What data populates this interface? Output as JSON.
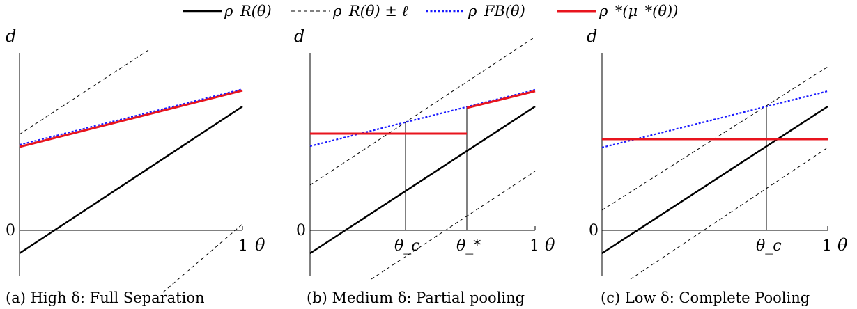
{
  "legend": [
    {
      "key": "rho_r",
      "label": "ρ_R(θ)",
      "style": "solid",
      "color": "#000000"
    },
    {
      "key": "rho_r_band",
      "label": "ρ_R(θ) ± ℓ",
      "style": "dashed",
      "color": "#000000"
    },
    {
      "key": "rho_fb",
      "label": "ρ_FB(θ)",
      "style": "dotted",
      "color": "#1a1aff"
    },
    {
      "key": "rho_star",
      "label": "ρ_*(μ_*(θ))",
      "style": "solid",
      "color": "#e8141e"
    }
  ],
  "axis_labels": {
    "y": "d",
    "x": "θ",
    "origin": "0",
    "x_max": "1"
  },
  "panels": [
    {
      "caption": "(a) High δ: Full Separation",
      "ticks": []
    },
    {
      "caption": "(b) Medium δ: Partial pooling",
      "ticks": [
        "θ_c",
        "θ_*"
      ]
    },
    {
      "caption": "(c) Low δ: Complete Pooling",
      "ticks": [
        "θ_c"
      ]
    }
  ],
  "colors": {
    "red": "#e8141e",
    "blue": "#1a1aff",
    "black": "#000000"
  }
}
